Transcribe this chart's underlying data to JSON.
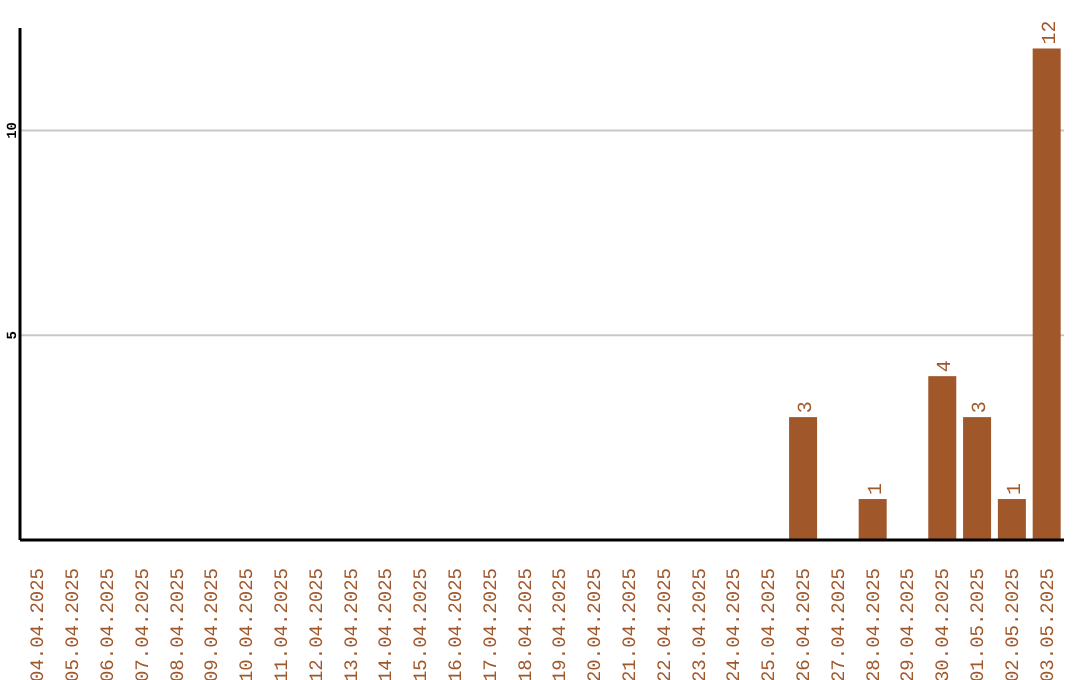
{
  "chart_data": {
    "type": "bar",
    "categories": [
      "04.04.2025",
      "05.04.2025",
      "06.04.2025",
      "07.04.2025",
      "08.04.2025",
      "09.04.2025",
      "10.04.2025",
      "11.04.2025",
      "12.04.2025",
      "13.04.2025",
      "14.04.2025",
      "15.04.2025",
      "16.04.2025",
      "17.04.2025",
      "18.04.2025",
      "19.04.2025",
      "20.04.2025",
      "21.04.2025",
      "22.04.2025",
      "23.04.2025",
      "24.04.2025",
      "25.04.2025",
      "26.04.2025",
      "27.04.2025",
      "28.04.2025",
      "29.04.2025",
      "30.04.2025",
      "01.05.2025",
      "02.05.2025",
      "03.05.2025"
    ],
    "values": [
      0,
      0,
      0,
      0,
      0,
      0,
      0,
      0,
      0,
      0,
      0,
      0,
      0,
      0,
      0,
      0,
      0,
      0,
      0,
      0,
      0,
      0,
      3,
      0,
      1,
      0,
      4,
      3,
      1,
      12
    ],
    "value_labels": [
      null,
      null,
      null,
      null,
      null,
      null,
      null,
      null,
      null,
      null,
      null,
      null,
      null,
      null,
      null,
      null,
      null,
      null,
      null,
      null,
      null,
      null,
      "3",
      null,
      "1",
      null,
      "4",
      "3",
      "1",
      "12"
    ],
    "color": "#a0572a",
    "ylim": [
      0,
      12.5
    ],
    "yticks": [
      5,
      10
    ],
    "grid": "y"
  }
}
